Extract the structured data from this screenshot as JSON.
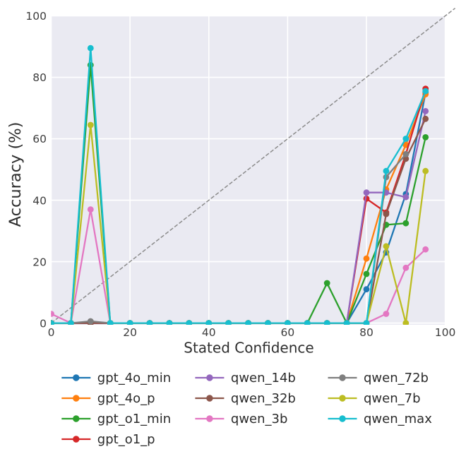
{
  "chart_data": {
    "type": "line",
    "title": "",
    "xlabel": "Stated Confidence",
    "ylabel": "Accuracy (%)",
    "xlim": [
      0,
      100
    ],
    "ylim": [
      0,
      100
    ],
    "xticks": [
      "0",
      "20",
      "40",
      "60",
      "80",
      "100"
    ],
    "yticks": [
      "0",
      "20",
      "40",
      "60",
      "80",
      "100"
    ],
    "xtick_values": [
      0,
      20,
      40,
      60,
      80,
      100
    ],
    "ytick_values": [
      0,
      20,
      40,
      60,
      80,
      100
    ],
    "grid": true,
    "plot_background_color": "#eaeaf2",
    "grid_color": "#ffffff",
    "figure_background_color": "#ffffff",
    "tick_label_color": "#3d3d3d",
    "axis_label_color": "#2e2e2e",
    "reference_line": {
      "name": "y-equals-x-diagonal",
      "style": "dashed",
      "color": "#8c8c8c",
      "from": [
        0,
        0
      ],
      "to": [
        102.5,
        102.5
      ]
    },
    "x": [
      0,
      5,
      10,
      15,
      20,
      25,
      30,
      35,
      40,
      45,
      50,
      55,
      60,
      65,
      70,
      75,
      80,
      85,
      90,
      95
    ],
    "series": [
      {
        "name": "gpt_4o_min",
        "color": "#1f77b4",
        "values": [
          0,
          0,
          0,
          0,
          0,
          0,
          0,
          0,
          0,
          0,
          0,
          0,
          0,
          0,
          0,
          0,
          11,
          23,
          42,
          75
        ]
      },
      {
        "name": "gpt_4o_p",
        "color": "#ff7f0e",
        "values": [
          0,
          0,
          0,
          0,
          0,
          0,
          0,
          0,
          0,
          0,
          0,
          0,
          0,
          0,
          0,
          0,
          21,
          43.5,
          58,
          74.5
        ]
      },
      {
        "name": "gpt_o1_min",
        "color": "#2ca02c",
        "values": [
          0,
          0,
          84,
          0,
          0,
          0,
          0,
          0,
          0,
          0,
          0,
          0,
          0,
          0,
          13,
          0,
          16,
          32,
          32.5,
          60.5
        ]
      },
      {
        "name": "gpt_o1_p",
        "color": "#d62728",
        "values": [
          0,
          0,
          0,
          0,
          0,
          0,
          0,
          0,
          0,
          0,
          0,
          0,
          0,
          0,
          0,
          0,
          40.5,
          36,
          55,
          76.3
        ]
      },
      {
        "name": "qwen_14b",
        "color": "#9467bd",
        "values": [
          0,
          0,
          0,
          0,
          0,
          0,
          0,
          0,
          0,
          0,
          0,
          0,
          0,
          0,
          0,
          0,
          42.5,
          42.5,
          41,
          69
        ]
      },
      {
        "name": "qwen_32b",
        "color": "#8c564b",
        "values": [
          0,
          0,
          0,
          0,
          0,
          0,
          0,
          0,
          0,
          0,
          0,
          0,
          0,
          0,
          0,
          0,
          0,
          35.5,
          53.5,
          66.5
        ]
      },
      {
        "name": "qwen_3b",
        "color": "#e377c2",
        "values": [
          3,
          0,
          37,
          0,
          0,
          0,
          0,
          0,
          0,
          0,
          0,
          0,
          0,
          0,
          0,
          0,
          0,
          3,
          18,
          24
        ]
      },
      {
        "name": "qwen_72b",
        "color": "#7f7f7f",
        "values": [
          0,
          0,
          0.6,
          0,
          0,
          0,
          0,
          0,
          0,
          0,
          0,
          0,
          0,
          0,
          0,
          0,
          0,
          47.5,
          55,
          null
        ]
      },
      {
        "name": "qwen_7b",
        "color": "#bcbd22",
        "values": [
          0,
          0,
          64.5,
          0,
          0,
          0,
          0,
          0,
          0,
          0,
          0,
          0,
          0,
          0,
          0,
          0,
          0,
          25,
          0,
          49.5
        ]
      },
      {
        "name": "qwen_max",
        "color": "#17becf",
        "values": [
          0,
          0,
          89.5,
          0,
          0,
          0,
          0,
          0,
          0,
          0,
          0,
          0,
          0,
          0,
          0,
          0,
          0,
          49.5,
          60,
          75.5
        ]
      }
    ],
    "legend": {
      "position": "below-chart",
      "frame": false,
      "ncol": 3,
      "entries": [
        "gpt_4o_min",
        "gpt_4o_p",
        "gpt_o1_min",
        "gpt_o1_p",
        "qwen_14b",
        "qwen_32b",
        "qwen_3b",
        "qwen_72b",
        "qwen_7b",
        "qwen_max"
      ]
    }
  }
}
